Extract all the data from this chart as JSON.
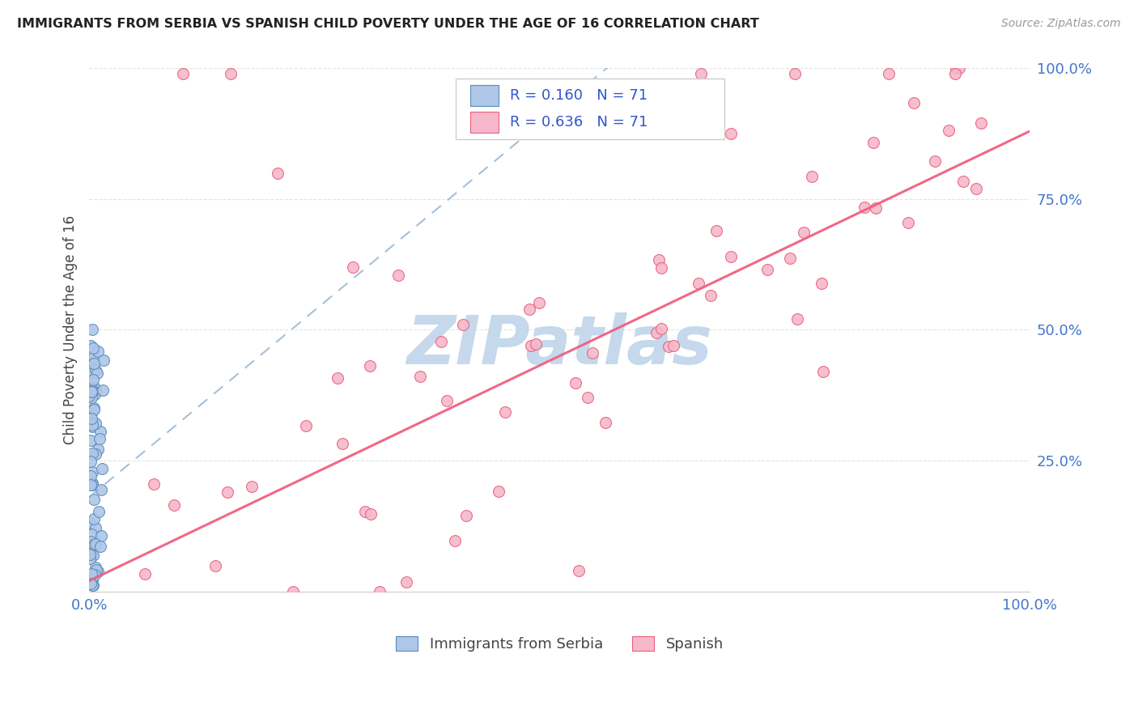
{
  "title": "IMMIGRANTS FROM SERBIA VS SPANISH CHILD POVERTY UNDER THE AGE OF 16 CORRELATION CHART",
  "source": "Source: ZipAtlas.com",
  "ylabel": "Child Poverty Under the Age of 16",
  "xlim": [
    0,
    1
  ],
  "ylim": [
    0,
    1
  ],
  "serbia_R": 0.16,
  "serbia_N": 71,
  "spanish_R": 0.636,
  "spanish_N": 71,
  "serbia_color": "#aec6e8",
  "spanish_color": "#f5b8cb",
  "serbia_edge_color": "#5b8db8",
  "spanish_edge_color": "#e8607a",
  "serbia_line_color": "#88aacc",
  "spanish_line_color": "#f06080",
  "legend_color": "#3355cc",
  "title_color": "#222222",
  "source_color": "#999999",
  "axis_label_color": "#444444",
  "tick_color": "#4477cc",
  "grid_color": "#e0e0e0",
  "watermark": "ZIPatlas",
  "watermark_color": "#c5d8ec"
}
